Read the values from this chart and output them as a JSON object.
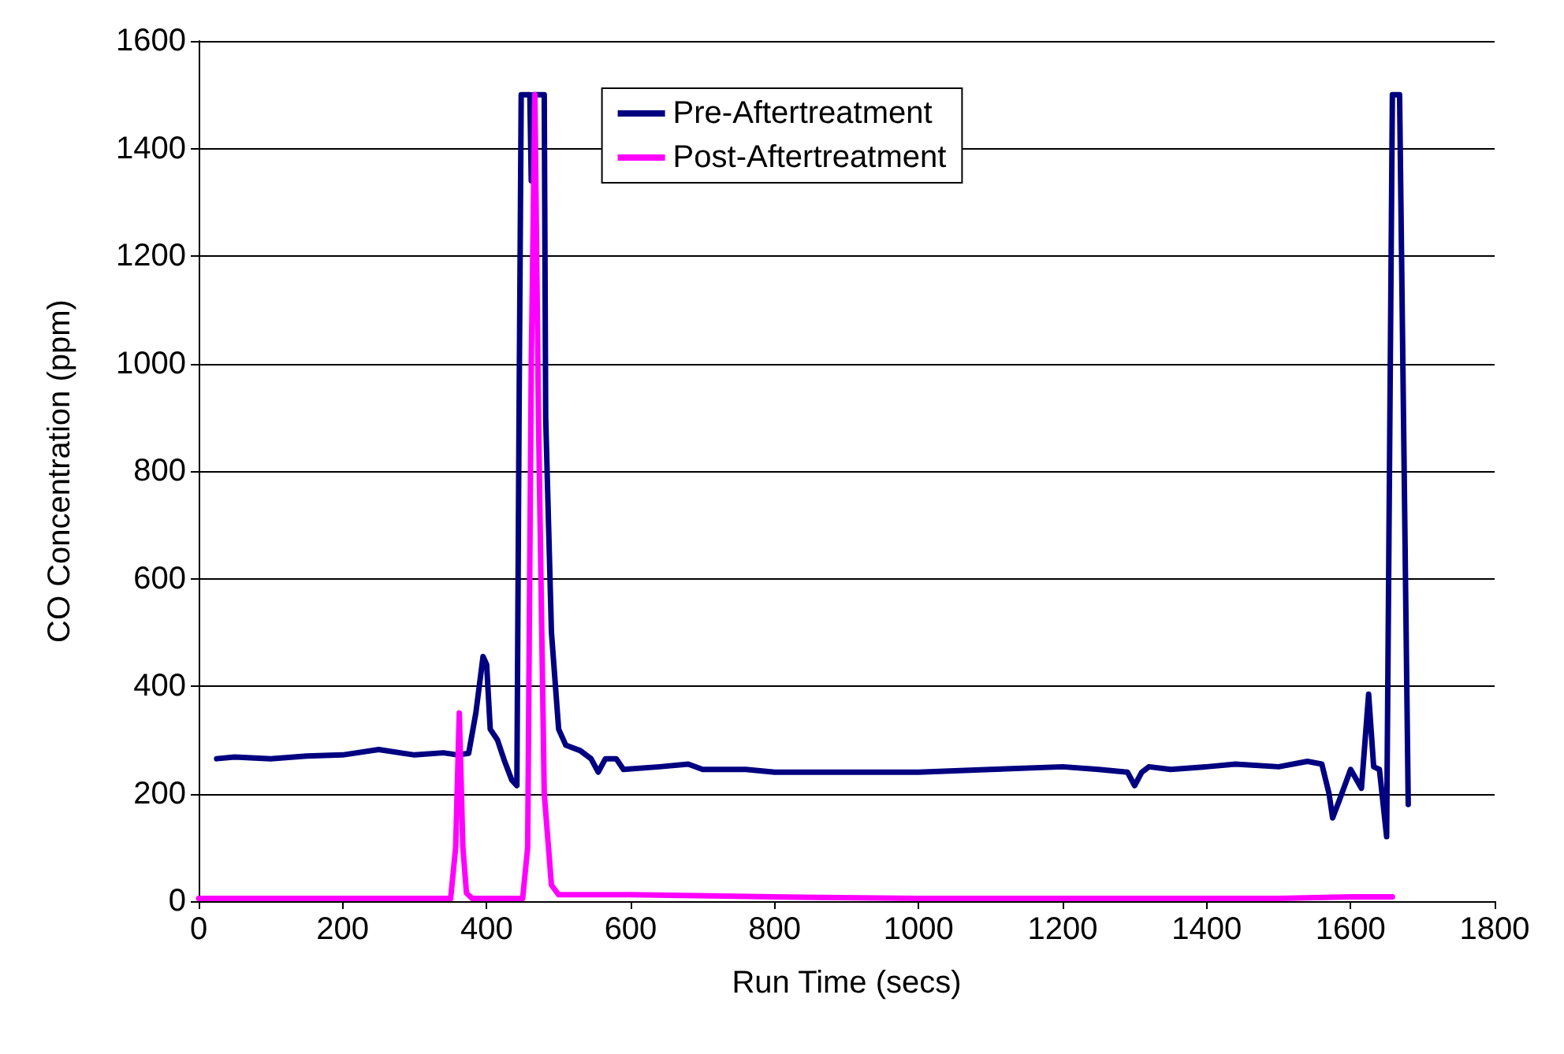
{
  "chart_data": {
    "type": "line",
    "xlabel": "Run Time (secs)",
    "ylabel": "CO Concentration (ppm)",
    "xlim": [
      0,
      1800
    ],
    "xticks": [
      0,
      200,
      400,
      600,
      800,
      1000,
      1200,
      1400,
      1600,
      1800
    ],
    "ylim": [
      0,
      1600
    ],
    "yticks": [
      0,
      200,
      400,
      600,
      800,
      1000,
      1200,
      1400,
      1600
    ],
    "grid": "y",
    "legend": "top",
    "marker": "none",
    "line_style": "solid",
    "series": [
      {
        "name": "Pre-Aftertreatment",
        "color": "#000080",
        "x": [
          25,
          50,
          100,
          150,
          200,
          250,
          300,
          340,
          360,
          375,
          385,
          395,
          400,
          405,
          415,
          425,
          435,
          442,
          445,
          448,
          460,
          462,
          465,
          480,
          482,
          490,
          500,
          510,
          530,
          545,
          555,
          565,
          580,
          590,
          640,
          680,
          700,
          760,
          800,
          900,
          1000,
          1100,
          1200,
          1250,
          1290,
          1300,
          1310,
          1320,
          1350,
          1400,
          1440,
          1500,
          1540,
          1560,
          1570,
          1575,
          1585,
          1600,
          1615,
          1625,
          1632,
          1640,
          1650,
          1658,
          1668,
          1680
        ],
        "values": [
          265,
          268,
          265,
          270,
          272,
          282,
          272,
          276,
          272,
          275,
          350,
          455,
          440,
          320,
          300,
          260,
          225,
          215,
          900,
          1500,
          1500,
          1340,
          1500,
          1500,
          900,
          500,
          320,
          290,
          280,
          265,
          240,
          265,
          265,
          245,
          250,
          255,
          245,
          245,
          240,
          240,
          240,
          245,
          250,
          245,
          240,
          215,
          240,
          250,
          245,
          250,
          255,
          250,
          260,
          255,
          200,
          155,
          190,
          245,
          210,
          385,
          250,
          245,
          120,
          1500,
          1500,
          180
        ]
      },
      {
        "name": "Post-Aftertreatment",
        "color": "#ff00ff",
        "x": [
          0,
          350,
          357,
          362,
          367,
          372,
          380,
          450,
          457,
          462,
          467,
          472,
          480,
          490,
          500,
          600,
          800,
          1000,
          1500,
          1600,
          1658
        ],
        "values": [
          5,
          5,
          100,
          350,
          100,
          15,
          5,
          5,
          100,
          1000,
          1500,
          900,
          200,
          30,
          12,
          12,
          8,
          5,
          5,
          8,
          8
        ]
      }
    ]
  }
}
